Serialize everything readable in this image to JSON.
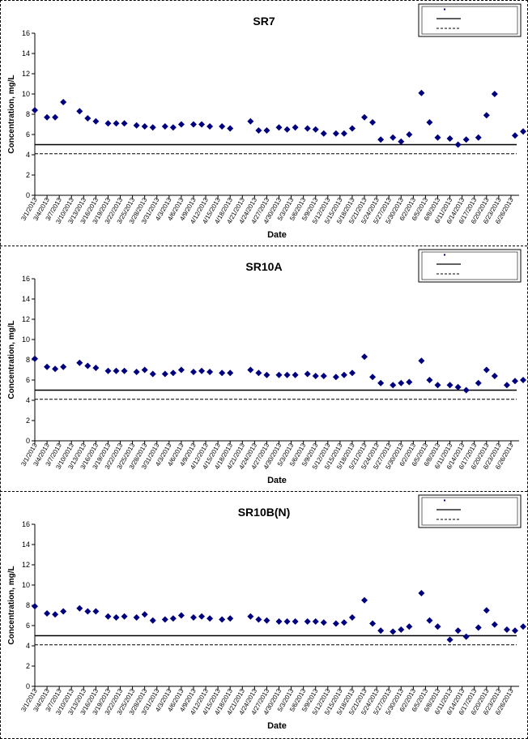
{
  "charts": [
    {
      "title": "SR7",
      "ylabel": "Concentration, mg/L",
      "xlabel": "Date",
      "legend_labels": [
        "",
        "",
        ""
      ]
    },
    {
      "title": "SR10A",
      "ylabel": "Concentration, mg/L",
      "xlabel": "Date",
      "legend_labels": [
        "",
        "",
        ""
      ]
    },
    {
      "title": "SR10B(N)",
      "ylabel": "Concentration, mg/L",
      "xlabel": "Date",
      "legend_labels": [
        "",
        "",
        ""
      ]
    }
  ],
  "chart_data": [
    {
      "type": "scatter",
      "title": "SR7",
      "xlabel": "Date",
      "ylabel": "Concentration, mg/L",
      "ylim": [
        0,
        16
      ],
      "yticks": [
        0,
        2,
        4,
        6,
        8,
        10,
        12,
        14,
        16
      ],
      "xlim": [
        "3/1/2013",
        "6/28/2013"
      ],
      "xticks": [
        "3/1/2013",
        "3/4/2013",
        "3/7/2013",
        "3/10/2013",
        "3/13/2013",
        "3/16/2013",
        "3/19/2013",
        "3/22/2013",
        "3/25/2013",
        "3/28/2013",
        "3/31/2013",
        "4/3/2013",
        "4/6/2013",
        "4/9/2013",
        "4/12/2013",
        "4/15/2013",
        "4/18/2013",
        "4/21/2013",
        "4/24/2013",
        "4/27/2013",
        "4/30/2013",
        "5/3/2013",
        "5/6/2013",
        "5/9/2013",
        "5/12/2013",
        "5/15/2013",
        "5/18/2013",
        "5/21/2013",
        "5/24/2013",
        "5/27/2013",
        "5/30/2013",
        "6/2/2013",
        "6/5/2013",
        "6/8/2013",
        "6/11/2013",
        "6/14/2013",
        "6/17/2013",
        "6/20/2013",
        "6/23/2013",
        "6/26/2013"
      ],
      "grid": false,
      "legend_position": "top-right",
      "series": [
        {
          "marker": "diamond",
          "color": "#00007f",
          "points": [
            [
              "3/1/2013",
              8.4
            ],
            [
              "3/4/2013",
              7.7
            ],
            [
              "3/6/2013",
              7.7
            ],
            [
              "3/8/2013",
              9.2
            ],
            [
              "3/12/2013",
              8.3
            ],
            [
              "3/14/2013",
              7.6
            ],
            [
              "3/16/2013",
              7.3
            ],
            [
              "3/19/2013",
              7.1
            ],
            [
              "3/21/2013",
              7.1
            ],
            [
              "3/23/2013",
              7.1
            ],
            [
              "3/26/2013",
              6.9
            ],
            [
              "3/28/2013",
              6.8
            ],
            [
              "3/30/2013",
              6.7
            ],
            [
              "4/2/2013",
              6.8
            ],
            [
              "4/4/2013",
              6.7
            ],
            [
              "4/6/2013",
              7.0
            ],
            [
              "4/9/2013",
              7.0
            ],
            [
              "4/11/2013",
              7.0
            ],
            [
              "4/13/2013",
              6.8
            ],
            [
              "4/16/2013",
              6.8
            ],
            [
              "4/18/2013",
              6.6
            ],
            [
              "4/23/2013",
              7.3
            ],
            [
              "4/25/2013",
              6.4
            ],
            [
              "4/27/2013",
              6.4
            ],
            [
              "4/30/2013",
              6.7
            ],
            [
              "5/2/2013",
              6.5
            ],
            [
              "5/4/2013",
              6.7
            ],
            [
              "5/7/2013",
              6.6
            ],
            [
              "5/9/2013",
              6.5
            ],
            [
              "5/11/2013",
              6.1
            ],
            [
              "5/14/2013",
              6.1
            ],
            [
              "5/16/2013",
              6.1
            ],
            [
              "5/18/2013",
              6.6
            ],
            [
              "5/21/2013",
              7.7
            ],
            [
              "5/23/2013",
              7.2
            ],
            [
              "5/25/2013",
              5.5
            ],
            [
              "5/28/2013",
              5.7
            ],
            [
              "5/30/2013",
              5.3
            ],
            [
              "6/1/2013",
              6.0
            ],
            [
              "6/4/2013",
              10.1
            ],
            [
              "6/6/2013",
              7.2
            ],
            [
              "6/8/2013",
              5.7
            ],
            [
              "6/11/2013",
              5.6
            ],
            [
              "6/13/2013",
              5.0
            ],
            [
              "6/15/2013",
              5.5
            ],
            [
              "6/18/2013",
              5.7
            ],
            [
              "6/20/2013",
              7.9
            ],
            [
              "6/22/2013",
              10.0
            ],
            [
              "6/27/2013",
              5.9
            ],
            [
              "6/29/2013",
              6.3
            ]
          ]
        }
      ],
      "reference_lines": [
        {
          "style": "solid",
          "y": 5.0
        },
        {
          "style": "dashed",
          "y": 4.1
        }
      ]
    },
    {
      "type": "scatter",
      "title": "SR10A",
      "xlabel": "Date",
      "ylabel": "Concentration, mg/L",
      "ylim": [
        0,
        16
      ],
      "yticks": [
        0,
        2,
        4,
        6,
        8,
        10,
        12,
        14,
        16
      ],
      "xlim": [
        "3/1/2013",
        "6/28/2013"
      ],
      "xticks": [
        "3/1/2013",
        "3/4/2013",
        "3/7/2013",
        "3/10/2013",
        "3/13/2013",
        "3/16/2013",
        "3/19/2013",
        "3/22/2013",
        "3/25/2013",
        "3/28/2013",
        "3/31/2013",
        "4/3/2013",
        "4/6/2013",
        "4/9/2013",
        "4/12/2013",
        "4/15/2013",
        "4/18/2013",
        "4/21/2013",
        "4/24/2013",
        "4/27/2013",
        "4/30/2013",
        "5/3/2013",
        "5/6/2013",
        "5/9/2013",
        "5/12/2013",
        "5/15/2013",
        "5/18/2013",
        "5/21/2013",
        "5/24/2013",
        "5/27/2013",
        "5/30/2013",
        "6/2/2013",
        "6/5/2013",
        "6/8/2013",
        "6/11/2013",
        "6/14/2013",
        "6/17/2013",
        "6/20/2013",
        "6/23/2013",
        "6/26/2013"
      ],
      "grid": false,
      "legend_position": "top-right",
      "series": [
        {
          "marker": "diamond",
          "color": "#00007f",
          "points": [
            [
              "3/1/2013",
              8.1
            ],
            [
              "3/4/2013",
              7.3
            ],
            [
              "3/6/2013",
              7.1
            ],
            [
              "3/8/2013",
              7.3
            ],
            [
              "3/12/2013",
              7.7
            ],
            [
              "3/14/2013",
              7.4
            ],
            [
              "3/16/2013",
              7.2
            ],
            [
              "3/19/2013",
              6.9
            ],
            [
              "3/21/2013",
              6.9
            ],
            [
              "3/23/2013",
              6.9
            ],
            [
              "3/26/2013",
              6.8
            ],
            [
              "3/28/2013",
              7.0
            ],
            [
              "3/30/2013",
              6.6
            ],
            [
              "4/2/2013",
              6.6
            ],
            [
              "4/4/2013",
              6.7
            ],
            [
              "4/6/2013",
              7.0
            ],
            [
              "4/9/2013",
              6.8
            ],
            [
              "4/11/2013",
              6.9
            ],
            [
              "4/13/2013",
              6.8
            ],
            [
              "4/16/2013",
              6.7
            ],
            [
              "4/18/2013",
              6.7
            ],
            [
              "4/23/2013",
              7.0
            ],
            [
              "4/25/2013",
              6.7
            ],
            [
              "4/27/2013",
              6.5
            ],
            [
              "4/30/2013",
              6.5
            ],
            [
              "5/2/2013",
              6.5
            ],
            [
              "5/4/2013",
              6.5
            ],
            [
              "5/7/2013",
              6.6
            ],
            [
              "5/9/2013",
              6.4
            ],
            [
              "5/11/2013",
              6.4
            ],
            [
              "5/14/2013",
              6.3
            ],
            [
              "5/16/2013",
              6.5
            ],
            [
              "5/18/2013",
              6.7
            ],
            [
              "5/21/2013",
              8.3
            ],
            [
              "5/23/2013",
              6.3
            ],
            [
              "5/25/2013",
              5.7
            ],
            [
              "5/28/2013",
              5.5
            ],
            [
              "5/30/2013",
              5.7
            ],
            [
              "6/1/2013",
              5.8
            ],
            [
              "6/4/2013",
              7.9
            ],
            [
              "6/6/2013",
              6.0
            ],
            [
              "6/8/2013",
              5.5
            ],
            [
              "6/11/2013",
              5.5
            ],
            [
              "6/13/2013",
              5.3
            ],
            [
              "6/15/2013",
              5.0
            ],
            [
              "6/18/2013",
              5.7
            ],
            [
              "6/20/2013",
              7.0
            ],
            [
              "6/22/2013",
              6.4
            ],
            [
              "6/25/2013",
              5.5
            ],
            [
              "6/27/2013",
              5.9
            ],
            [
              "6/29/2013",
              6.0
            ]
          ]
        }
      ],
      "reference_lines": [
        {
          "style": "solid",
          "y": 5.0
        },
        {
          "style": "dashed",
          "y": 4.1
        }
      ]
    },
    {
      "type": "scatter",
      "title": "SR10B(N)",
      "xlabel": "Date",
      "ylabel": "Concentration, mg/L",
      "ylim": [
        0,
        16
      ],
      "yticks": [
        0,
        2,
        4,
        6,
        8,
        10,
        12,
        14,
        16
      ],
      "xlim": [
        "3/1/2013",
        "6/28/2013"
      ],
      "xticks": [
        "3/1/2013",
        "3/4/2013",
        "3/7/2013",
        "3/10/2013",
        "3/13/2013",
        "3/16/2013",
        "3/19/2013",
        "3/22/2013",
        "3/25/2013",
        "3/28/2013",
        "3/31/2013",
        "4/3/2013",
        "4/6/2013",
        "4/9/2013",
        "4/12/2013",
        "4/15/2013",
        "4/18/2013",
        "4/21/2013",
        "4/24/2013",
        "4/27/2013",
        "4/30/2013",
        "5/3/2013",
        "5/6/2013",
        "5/9/2013",
        "5/12/2013",
        "5/15/2013",
        "5/18/2013",
        "5/21/2013",
        "5/24/2013",
        "5/27/2013",
        "5/30/2013",
        "6/2/2013",
        "6/5/2013",
        "6/8/2013",
        "6/11/2013",
        "6/14/2013",
        "6/17/2013",
        "6/20/2013",
        "6/23/2013",
        "6/26/2013"
      ],
      "grid": false,
      "legend_position": "top-right",
      "series": [
        {
          "marker": "diamond",
          "color": "#00007f",
          "points": [
            [
              "3/1/2013",
              7.9
            ],
            [
              "3/4/2013",
              7.2
            ],
            [
              "3/6/2013",
              7.1
            ],
            [
              "3/8/2013",
              7.4
            ],
            [
              "3/12/2013",
              7.7
            ],
            [
              "3/14/2013",
              7.4
            ],
            [
              "3/16/2013",
              7.4
            ],
            [
              "3/19/2013",
              6.9
            ],
            [
              "3/21/2013",
              6.8
            ],
            [
              "3/23/2013",
              6.9
            ],
            [
              "3/26/2013",
              6.8
            ],
            [
              "3/28/2013",
              7.1
            ],
            [
              "3/30/2013",
              6.5
            ],
            [
              "4/2/2013",
              6.6
            ],
            [
              "4/4/2013",
              6.7
            ],
            [
              "4/6/2013",
              7.0
            ],
            [
              "4/9/2013",
              6.8
            ],
            [
              "4/11/2013",
              6.9
            ],
            [
              "4/13/2013",
              6.7
            ],
            [
              "4/16/2013",
              6.6
            ],
            [
              "4/18/2013",
              6.7
            ],
            [
              "4/23/2013",
              6.9
            ],
            [
              "4/25/2013",
              6.6
            ],
            [
              "4/27/2013",
              6.5
            ],
            [
              "4/30/2013",
              6.4
            ],
            [
              "5/2/2013",
              6.4
            ],
            [
              "5/4/2013",
              6.4
            ],
            [
              "5/7/2013",
              6.4
            ],
            [
              "5/9/2013",
              6.4
            ],
            [
              "5/11/2013",
              6.3
            ],
            [
              "5/14/2013",
              6.2
            ],
            [
              "5/16/2013",
              6.3
            ],
            [
              "5/18/2013",
              6.8
            ],
            [
              "5/21/2013",
              8.5
            ],
            [
              "5/23/2013",
              6.2
            ],
            [
              "5/25/2013",
              5.5
            ],
            [
              "5/28/2013",
              5.4
            ],
            [
              "5/30/2013",
              5.6
            ],
            [
              "6/1/2013",
              5.9
            ],
            [
              "6/4/2013",
              9.2
            ],
            [
              "6/6/2013",
              6.5
            ],
            [
              "6/8/2013",
              5.9
            ],
            [
              "6/11/2013",
              4.6
            ],
            [
              "6/13/2013",
              5.5
            ],
            [
              "6/15/2013",
              4.9
            ],
            [
              "6/18/2013",
              5.8
            ],
            [
              "6/20/2013",
              7.5
            ],
            [
              "6/22/2013",
              6.1
            ],
            [
              "6/25/2013",
              5.6
            ],
            [
              "6/27/2013",
              5.5
            ],
            [
              "6/29/2013",
              5.9
            ]
          ]
        }
      ],
      "reference_lines": [
        {
          "style": "solid",
          "y": 5.0
        },
        {
          "style": "dashed",
          "y": 4.1
        }
      ]
    }
  ]
}
